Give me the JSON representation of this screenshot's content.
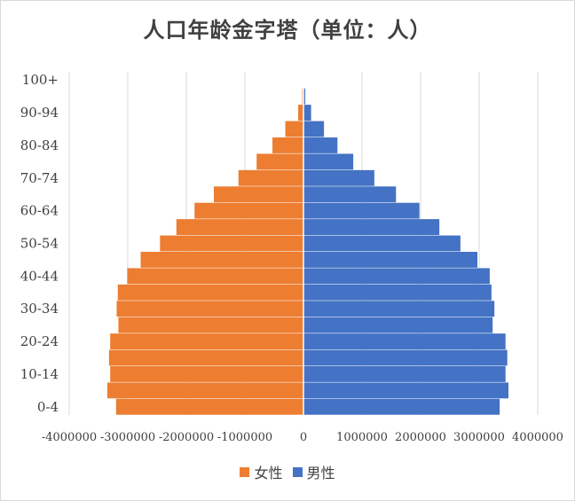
{
  "chart_data": {
    "type": "bar",
    "orientation": "horizontal",
    "title": "人口年龄金字塔（单位：人）",
    "xlabel": "",
    "ylabel": "",
    "xlim": [
      -4000000,
      4000000
    ],
    "x_ticks": [
      -4000000,
      -3000000,
      -2000000,
      -1000000,
      0,
      1000000,
      2000000,
      3000000,
      4000000
    ],
    "x_tick_labels": [
      "-4000000",
      "-3000000",
      "-2000000",
      "-1000000",
      "0",
      "1000000",
      "2000000",
      "3000000",
      "4000000"
    ],
    "y_tick_labels": [
      "100+",
      "90-94",
      "80-84",
      "70-74",
      "60-64",
      "50-54",
      "40-44",
      "30-34",
      "20-24",
      "10-14",
      "0-4"
    ],
    "categories": [
      "0-4",
      "5-9",
      "10-14",
      "15-19",
      "20-24",
      "25-29",
      "30-34",
      "35-39",
      "40-44",
      "45-49",
      "50-54",
      "55-59",
      "60-64",
      "65-69",
      "70-74",
      "75-79",
      "80-84",
      "85-89",
      "90-94",
      "95-99",
      "100+"
    ],
    "series": [
      {
        "name": "女性",
        "color": "#ED7D31",
        "values": [
          -3200000,
          -3350000,
          -3300000,
          -3320000,
          -3300000,
          -3160000,
          -3190000,
          -3170000,
          -3010000,
          -2780000,
          -2450000,
          -2170000,
          -1860000,
          -1530000,
          -1110000,
          -800000,
          -530000,
          -310000,
          -90000,
          -20000,
          -5000
        ]
      },
      {
        "name": "男性",
        "color": "#4472C4",
        "values": [
          3350000,
          3500000,
          3450000,
          3480000,
          3450000,
          3230000,
          3260000,
          3210000,
          3180000,
          2970000,
          2680000,
          2320000,
          1980000,
          1580000,
          1210000,
          850000,
          580000,
          350000,
          130000,
          30000,
          5000
        ]
      }
    ],
    "grid": "vertical",
    "legend_position": "bottom"
  },
  "legend": [
    {
      "label": "女性",
      "color": "#ED7D31"
    },
    {
      "label": "男性",
      "color": "#4472C4"
    }
  ]
}
